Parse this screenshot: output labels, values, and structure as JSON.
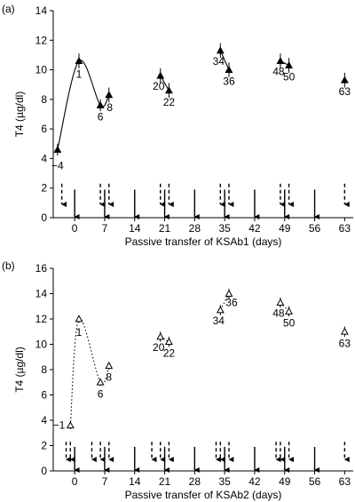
{
  "chart_data": [
    {
      "panel_label": "(a)",
      "type": "line",
      "xlabel": "Passive transfer of KSAb1 (days)",
      "ylabel": "T4 (µg/dl)",
      "xlim": [
        -5,
        65
      ],
      "ylim": [
        0,
        14
      ],
      "xticks": [
        "0",
        "7",
        "14",
        "21",
        "28",
        "35",
        "42",
        "49",
        "56",
        "63"
      ],
      "xtick_values": [
        0,
        7,
        14,
        21,
        28,
        35,
        42,
        49,
        56,
        63
      ],
      "yticks": [
        "0",
        "2",
        "4",
        "6",
        "8",
        "10",
        "12",
        "14"
      ],
      "ytick_values": [
        0,
        2,
        4,
        6,
        8,
        10,
        12,
        14
      ],
      "marker": "filled-triangle",
      "series": [
        {
          "points": [
            {
              "x": -4,
              "y": 4.6,
              "err": 0.4,
              "label": "−4"
            },
            {
              "x": 1,
              "y": 10.6,
              "err": 0.5,
              "label": "1"
            },
            {
              "x": 6,
              "y": 7.6,
              "err": 0.4,
              "label": "6"
            },
            {
              "x": 8,
              "y": 8.3,
              "err": 0.5,
              "label": "8"
            },
            {
              "x": 20,
              "y": 9.6,
              "err": 0.5,
              "label": "20"
            },
            {
              "x": 22,
              "y": 8.6,
              "err": 0.5,
              "label": "22"
            },
            {
              "x": 34,
              "y": 11.3,
              "err": 0.5,
              "label": "34"
            },
            {
              "x": 36,
              "y": 10.0,
              "err": 0.5,
              "label": "36"
            },
            {
              "x": 48,
              "y": 10.6,
              "err": 0.5,
              "label": "48"
            },
            {
              "x": 50,
              "y": 10.3,
              "err": 0.5,
              "label": "50"
            },
            {
              "x": 63,
              "y": 9.3,
              "err": 0.5,
              "label": "63"
            }
          ],
          "curve_segments": [
            [
              -4,
              1,
              6,
              8
            ],
            [
              20,
              22
            ],
            [
              34,
              36
            ],
            [
              48,
              50
            ]
          ],
          "line_style": "solid"
        }
      ],
      "dashed_arrows_x": [
        -3,
        6,
        8,
        20,
        22,
        34,
        36,
        48,
        50,
        63
      ],
      "solid_arrows_x": [
        0,
        7,
        14,
        21,
        28,
        35,
        42,
        49,
        56
      ]
    },
    {
      "panel_label": "(b)",
      "type": "line",
      "xlabel": "Passive transfer of KSAb2 (days)",
      "ylabel": "T4 (µg/dl)",
      "xlim": [
        -5,
        65
      ],
      "ylim": [
        0,
        16
      ],
      "xticks": [
        "0",
        "7",
        "14",
        "21",
        "28",
        "35",
        "42",
        "49",
        "56",
        "63"
      ],
      "xtick_values": [
        0,
        7,
        14,
        21,
        28,
        35,
        42,
        49,
        56,
        63
      ],
      "yticks": [
        "0",
        "2",
        "4",
        "6",
        "8",
        "10",
        "12",
        "14",
        "16"
      ],
      "ytick_values": [
        0,
        2,
        4,
        6,
        8,
        10,
        12,
        14,
        16
      ],
      "marker": "open-triangle",
      "series": [
        {
          "points": [
            {
              "x": -1,
              "y": 3.6,
              "err": 0.3,
              "label": "−1"
            },
            {
              "x": 1,
              "y": 12.0,
              "err": 0.3,
              "label": "1"
            },
            {
              "x": 6,
              "y": 7.0,
              "err": 0.3,
              "label": "6"
            },
            {
              "x": 8,
              "y": 8.3,
              "err": 0.3,
              "label": "8"
            },
            {
              "x": 20,
              "y": 10.6,
              "err": 0.4,
              "label": "20"
            },
            {
              "x": 22,
              "y": 10.2,
              "err": 0.4,
              "label": "22"
            },
            {
              "x": 34,
              "y": 12.7,
              "err": 0.4,
              "label": "34"
            },
            {
              "x": 36,
              "y": 14.0,
              "err": 0.4,
              "label": "36"
            },
            {
              "x": 48,
              "y": 13.3,
              "err": 0.4,
              "label": "48"
            },
            {
              "x": 50,
              "y": 12.6,
              "err": 0.4,
              "label": "50"
            },
            {
              "x": 63,
              "y": 11.0,
              "err": 0.4,
              "label": "63"
            }
          ],
          "curve_segments": [
            [
              -1,
              1,
              6,
              8
            ],
            [
              20,
              22
            ],
            [
              34,
              36
            ],
            [
              48,
              50
            ]
          ],
          "line_style": "dotted"
        }
      ],
      "dashed_arrows_x": [
        -2,
        -1,
        4,
        6,
        8,
        18,
        20,
        22,
        33,
        34,
        36,
        47,
        48,
        50,
        63
      ],
      "solid_arrows_x": [
        0,
        7,
        14,
        21,
        28,
        35,
        42,
        49,
        56
      ]
    }
  ]
}
